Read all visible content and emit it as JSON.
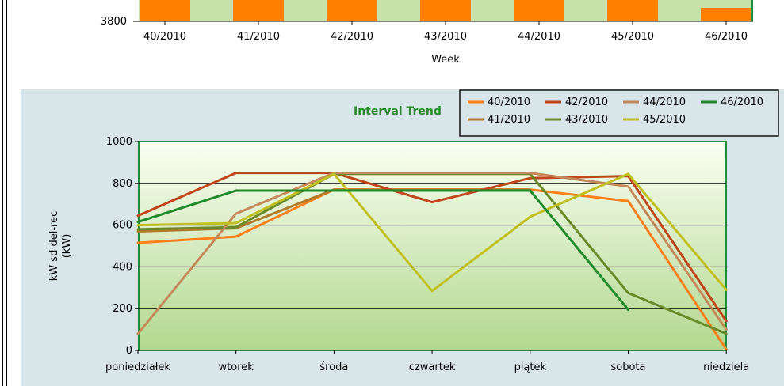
{
  "top_chart": {
    "chart_data": {
      "type": "bar",
      "categories": [
        "40/2010",
        "41/2010",
        "42/2010",
        "43/2010",
        "44/2010",
        "45/2010",
        "46/2010"
      ],
      "y_tick_label": "3800",
      "xlabel": "Week",
      "bar_color": "#ff7f00",
      "plot_bg": "#c6e2a8",
      "border_color": "#1e8c3a"
    }
  },
  "bottom_chart": {
    "title": "Interval Trend",
    "chart_data": {
      "type": "line",
      "categories": [
        "poniedziałek",
        "wtorek",
        "środa",
        "czwartek",
        "piątek",
        "sobota",
        "niedziela"
      ],
      "ylabel_line1": "kW sd del-rec",
      "ylabel_line2": "(kW)",
      "ylim": [
        0,
        1000
      ],
      "y_ticks": [
        "0",
        "200",
        "400",
        "600",
        "800",
        "1000"
      ],
      "grid": true,
      "legend_position": "top-right",
      "series": [
        {
          "name": "40/2010",
          "color": "#ff7f1a",
          "values": [
            515,
            545,
            770,
            770,
            770,
            715,
            5
          ]
        },
        {
          "name": "41/2010",
          "color": "#b07a2a",
          "values": [
            570,
            585,
            770,
            770,
            770,
            null,
            null
          ]
        },
        {
          "name": "42/2010",
          "color": "#c0451a",
          "values": [
            645,
            850,
            850,
            710,
            825,
            835,
            140
          ]
        },
        {
          "name": "43/2010",
          "color": "#6a8a2a",
          "values": [
            580,
            590,
            845,
            845,
            845,
            275,
            80
          ]
        },
        {
          "name": "44/2010",
          "color": "#c4885a",
          "values": [
            80,
            655,
            850,
            850,
            850,
            785,
            100
          ]
        },
        {
          "name": "45/2010",
          "color": "#c0c020",
          "values": [
            600,
            610,
            845,
            285,
            640,
            845,
            290
          ]
        },
        {
          "name": "46/2010",
          "color": "#1e8a2a",
          "values": [
            615,
            765,
            765,
            765,
            765,
            195,
            null
          ]
        }
      ]
    }
  }
}
